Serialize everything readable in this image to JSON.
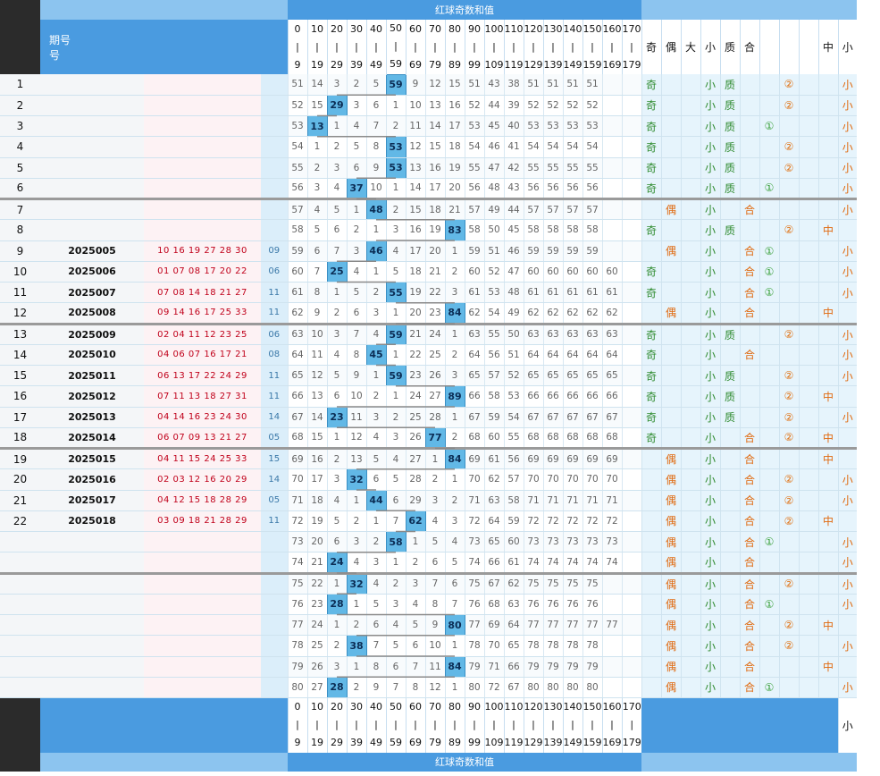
{
  "header": {
    "top_title": "红球奇数和值",
    "issue_label_line1": "期号",
    "issue_label_line2": "号",
    "ranges_top": [
      "0",
      "10",
      "20",
      "30",
      "40",
      "50",
      "60",
      "70",
      "80",
      "90",
      "100",
      "110",
      "120",
      "130",
      "140",
      "150",
      "160",
      "170"
    ],
    "ranges_mid": "|",
    "ranges_bottom": [
      "9",
      "19",
      "29",
      "39",
      "49",
      "59",
      "69",
      "79",
      "89",
      "99",
      "109",
      "119",
      "129",
      "139",
      "149",
      "159",
      "169",
      "179"
    ],
    "attr_labels": [
      "奇",
      "偶",
      "大",
      "小",
      "质",
      "合",
      "",
      "",
      "",
      "中",
      "小"
    ]
  },
  "footer": {
    "bottom_title": "红球奇数和值",
    "ranges_top": [
      "0",
      "10",
      "20",
      "30",
      "40",
      "50",
      "60",
      "70",
      "80",
      "90",
      "100",
      "110",
      "120",
      "130",
      "140",
      "150",
      "160",
      "170"
    ],
    "ranges_mid": "|",
    "ranges_bottom": [
      "9",
      "19",
      "29",
      "39",
      "49",
      "59",
      "69",
      "79",
      "89",
      "99",
      "109",
      "119",
      "129",
      "139",
      "149",
      "159",
      "169",
      "179"
    ],
    "last_attr_label": "小"
  },
  "rows": [
    {
      "idx": "1",
      "issue": "",
      "red": "",
      "sum": "",
      "hit": 5,
      "val": "59",
      "miss": [
        "51",
        "14",
        "3",
        "2",
        "5",
        "",
        "9",
        "12",
        "15",
        "51",
        "43",
        "38",
        "51",
        "51",
        "51",
        "51",
        "",
        ""
      ],
      "attrs": [
        "奇",
        "",
        "",
        "小",
        "质",
        "",
        "",
        "②",
        "",
        "",
        "小"
      ]
    },
    {
      "idx": "2",
      "issue": "",
      "red": "",
      "sum": "",
      "hit": 2,
      "val": "29",
      "miss": [
        "52",
        "15",
        "",
        "3",
        "6",
        "1",
        "10",
        "13",
        "16",
        "52",
        "44",
        "39",
        "52",
        "52",
        "52",
        "52",
        "",
        ""
      ],
      "attrs": [
        "奇",
        "",
        "",
        "小",
        "质",
        "",
        "",
        "②",
        "",
        "",
        "小"
      ]
    },
    {
      "idx": "3",
      "issue": "",
      "red": "",
      "sum": "",
      "hit": 1,
      "val": "13",
      "miss": [
        "53",
        "",
        "1",
        "4",
        "7",
        "2",
        "11",
        "14",
        "17",
        "53",
        "45",
        "40",
        "53",
        "53",
        "53",
        "53",
        "",
        ""
      ],
      "attrs": [
        "奇",
        "",
        "",
        "小",
        "质",
        "",
        "①",
        "",
        "",
        "",
        "小"
      ]
    },
    {
      "idx": "4",
      "issue": "",
      "red": "",
      "sum": "",
      "hit": 5,
      "val": "53",
      "miss": [
        "54",
        "1",
        "2",
        "5",
        "8",
        "",
        "12",
        "15",
        "18",
        "54",
        "46",
        "41",
        "54",
        "54",
        "54",
        "54",
        "",
        ""
      ],
      "attrs": [
        "奇",
        "",
        "",
        "小",
        "质",
        "",
        "",
        "②",
        "",
        "",
        "小"
      ]
    },
    {
      "idx": "5",
      "issue": "",
      "red": "",
      "sum": "",
      "hit": 5,
      "val": "53",
      "miss": [
        "55",
        "2",
        "3",
        "6",
        "9",
        "",
        "13",
        "16",
        "19",
        "55",
        "47",
        "42",
        "55",
        "55",
        "55",
        "55",
        "",
        ""
      ],
      "attrs": [
        "奇",
        "",
        "",
        "小",
        "质",
        "",
        "",
        "②",
        "",
        "",
        "小"
      ]
    },
    {
      "idx": "6",
      "issue": "",
      "red": "",
      "sum": "",
      "hit": 3,
      "val": "37",
      "miss": [
        "56",
        "3",
        "4",
        "",
        "10",
        "1",
        "14",
        "17",
        "20",
        "56",
        "48",
        "43",
        "56",
        "56",
        "56",
        "56",
        "",
        ""
      ],
      "attrs": [
        "奇",
        "",
        "",
        "小",
        "质",
        "",
        "①",
        "",
        "",
        "",
        "小"
      ]
    },
    {
      "idx": "7",
      "issue": "",
      "red": "",
      "sum": "",
      "hit": 4,
      "val": "48",
      "miss": [
        "57",
        "4",
        "5",
        "1",
        "",
        "2",
        "15",
        "18",
        "21",
        "57",
        "49",
        "44",
        "57",
        "57",
        "57",
        "57",
        "",
        ""
      ],
      "attrs": [
        "",
        "偶",
        "",
        "小",
        "",
        "合",
        "",
        "",
        "",
        "",
        "小"
      ]
    },
    {
      "idx": "8",
      "issue": "",
      "red": "",
      "sum": "",
      "hit": 8,
      "val": "83",
      "miss": [
        "58",
        "5",
        "6",
        "2",
        "1",
        "3",
        "16",
        "19",
        "",
        "58",
        "50",
        "45",
        "58",
        "58",
        "58",
        "58",
        "",
        ""
      ],
      "attrs": [
        "奇",
        "",
        "",
        "小",
        "质",
        "",
        "",
        "②",
        "",
        "中",
        ""
      ]
    },
    {
      "idx": "9",
      "issue": "2025005",
      "red": "10 16 19 27 28 30",
      "sum": "09",
      "hit": 4,
      "val": "46",
      "miss": [
        "59",
        "6",
        "7",
        "3",
        "",
        "4",
        "17",
        "20",
        "1",
        "59",
        "51",
        "46",
        "59",
        "59",
        "59",
        "59",
        "",
        ""
      ],
      "attrs": [
        "",
        "偶",
        "",
        "小",
        "",
        "合",
        "①",
        "",
        "",
        "",
        "小"
      ]
    },
    {
      "idx": "10",
      "issue": "2025006",
      "red": "01 07 08 17 20 22",
      "sum": "06",
      "hit": 2,
      "val": "25",
      "miss": [
        "60",
        "7",
        "",
        "4",
        "1",
        "5",
        "18",
        "21",
        "2",
        "60",
        "52",
        "47",
        "60",
        "60",
        "60",
        "60",
        "60",
        ""
      ],
      "attrs": [
        "奇",
        "",
        "",
        "小",
        "",
        "合",
        "①",
        "",
        "",
        "",
        "小"
      ]
    },
    {
      "idx": "11",
      "issue": "2025007",
      "red": "07 08 14 18 21 27",
      "sum": "11",
      "hit": 5,
      "val": "55",
      "miss": [
        "61",
        "8",
        "1",
        "5",
        "2",
        "",
        "19",
        "22",
        "3",
        "61",
        "53",
        "48",
        "61",
        "61",
        "61",
        "61",
        "61",
        ""
      ],
      "attrs": [
        "奇",
        "",
        "",
        "小",
        "",
        "合",
        "①",
        "",
        "",
        "",
        "小"
      ]
    },
    {
      "idx": "12",
      "issue": "2025008",
      "red": "09 14 16 17 25 33",
      "sum": "11",
      "hit": 8,
      "val": "84",
      "miss": [
        "62",
        "9",
        "2",
        "6",
        "3",
        "1",
        "20",
        "23",
        "",
        "62",
        "54",
        "49",
        "62",
        "62",
        "62",
        "62",
        "62",
        ""
      ],
      "attrs": [
        "",
        "偶",
        "",
        "小",
        "",
        "合",
        "",
        "",
        "",
        "中",
        ""
      ]
    },
    {
      "idx": "13",
      "issue": "2025009",
      "red": "02 04 11 12 23 25",
      "sum": "06",
      "hit": 5,
      "val": "59",
      "miss": [
        "63",
        "10",
        "3",
        "7",
        "4",
        "",
        "21",
        "24",
        "1",
        "63",
        "55",
        "50",
        "63",
        "63",
        "63",
        "63",
        "63",
        ""
      ],
      "attrs": [
        "奇",
        "",
        "",
        "小",
        "质",
        "",
        "",
        "②",
        "",
        "",
        "小"
      ]
    },
    {
      "idx": "14",
      "issue": "2025010",
      "red": "04 06 07 16 17 21",
      "sum": "08",
      "hit": 4,
      "val": "45",
      "miss": [
        "64",
        "11",
        "4",
        "8",
        "",
        "1",
        "22",
        "25",
        "2",
        "64",
        "56",
        "51",
        "64",
        "64",
        "64",
        "64",
        "64",
        ""
      ],
      "attrs": [
        "奇",
        "",
        "",
        "小",
        "",
        "合",
        "",
        "",
        "",
        "",
        "小"
      ]
    },
    {
      "idx": "15",
      "issue": "2025011",
      "red": "06 13 17 22 24 29",
      "sum": "11",
      "hit": 5,
      "val": "59",
      "miss": [
        "65",
        "12",
        "5",
        "9",
        "1",
        "",
        "23",
        "26",
        "3",
        "65",
        "57",
        "52",
        "65",
        "65",
        "65",
        "65",
        "65",
        ""
      ],
      "attrs": [
        "奇",
        "",
        "",
        "小",
        "质",
        "",
        "",
        "②",
        "",
        "",
        "小"
      ]
    },
    {
      "idx": "16",
      "issue": "2025012",
      "red": "07 11 13 18 27 31",
      "sum": "11",
      "hit": 8,
      "val": "89",
      "miss": [
        "66",
        "13",
        "6",
        "10",
        "2",
        "1",
        "24",
        "27",
        "",
        "66",
        "58",
        "53",
        "66",
        "66",
        "66",
        "66",
        "66",
        ""
      ],
      "attrs": [
        "奇",
        "",
        "",
        "小",
        "质",
        "",
        "",
        "②",
        "",
        "中",
        ""
      ]
    },
    {
      "idx": "17",
      "issue": "2025013",
      "red": "04 14 16 23 24 30",
      "sum": "14",
      "hit": 2,
      "val": "23",
      "miss": [
        "67",
        "14",
        "",
        "11",
        "3",
        "2",
        "25",
        "28",
        "1",
        "67",
        "59",
        "54",
        "67",
        "67",
        "67",
        "67",
        "67",
        ""
      ],
      "attrs": [
        "奇",
        "",
        "",
        "小",
        "质",
        "",
        "",
        "②",
        "",
        "",
        "小"
      ]
    },
    {
      "idx": "18",
      "issue": "2025014",
      "red": "06 07 09 13 21 27",
      "sum": "05",
      "hit": 7,
      "val": "77",
      "miss": [
        "68",
        "15",
        "1",
        "12",
        "4",
        "3",
        "26",
        "",
        "2",
        "68",
        "60",
        "55",
        "68",
        "68",
        "68",
        "68",
        "68",
        ""
      ],
      "attrs": [
        "奇",
        "",
        "",
        "小",
        "",
        "合",
        "",
        "②",
        "",
        "中",
        ""
      ]
    },
    {
      "idx": "19",
      "issue": "2025015",
      "red": "04 11 15 24 25 33",
      "sum": "15",
      "hit": 8,
      "val": "84",
      "miss": [
        "69",
        "16",
        "2",
        "13",
        "5",
        "4",
        "27",
        "1",
        "",
        "69",
        "61",
        "56",
        "69",
        "69",
        "69",
        "69",
        "69",
        ""
      ],
      "attrs": [
        "",
        "偶",
        "",
        "小",
        "",
        "合",
        "",
        "",
        "",
        "中",
        ""
      ]
    },
    {
      "idx": "20",
      "issue": "2025016",
      "red": "02 03 12 16 20 29",
      "sum": "14",
      "hit": 3,
      "val": "32",
      "miss": [
        "70",
        "17",
        "3",
        "",
        "6",
        "5",
        "28",
        "2",
        "1",
        "70",
        "62",
        "57",
        "70",
        "70",
        "70",
        "70",
        "70",
        ""
      ],
      "attrs": [
        "",
        "偶",
        "",
        "小",
        "",
        "合",
        "",
        "②",
        "",
        "",
        "小"
      ]
    },
    {
      "idx": "21",
      "issue": "2025017",
      "red": "04 12 15 18 28 29",
      "sum": "05",
      "hit": 4,
      "val": "44",
      "miss": [
        "71",
        "18",
        "4",
        "1",
        "",
        "6",
        "29",
        "3",
        "2",
        "71",
        "63",
        "58",
        "71",
        "71",
        "71",
        "71",
        "71",
        ""
      ],
      "attrs": [
        "",
        "偶",
        "",
        "小",
        "",
        "合",
        "",
        "②",
        "",
        "",
        "小"
      ]
    },
    {
      "idx": "22",
      "issue": "2025018",
      "red": "03 09 18 21 28 29",
      "sum": "11",
      "hit": 6,
      "val": "62",
      "miss": [
        "72",
        "19",
        "5",
        "2",
        "1",
        "7",
        "",
        "4",
        "3",
        "72",
        "64",
        "59",
        "72",
        "72",
        "72",
        "72",
        "72",
        ""
      ],
      "attrs": [
        "",
        "偶",
        "",
        "小",
        "",
        "合",
        "",
        "②",
        "",
        "中",
        ""
      ]
    },
    {
      "idx": "",
      "issue": "",
      "red": "",
      "sum": "",
      "hit": 5,
      "val": "58",
      "miss": [
        "73",
        "20",
        "6",
        "3",
        "2",
        "",
        "1",
        "5",
        "4",
        "73",
        "65",
        "60",
        "73",
        "73",
        "73",
        "73",
        "73",
        ""
      ],
      "attrs": [
        "",
        "偶",
        "",
        "小",
        "",
        "合",
        "①",
        "",
        "",
        "",
        "小"
      ]
    },
    {
      "idx": "",
      "issue": "",
      "red": "",
      "sum": "",
      "hit": 2,
      "val": "24",
      "miss": [
        "74",
        "21",
        "",
        "4",
        "3",
        "1",
        "2",
        "6",
        "5",
        "74",
        "66",
        "61",
        "74",
        "74",
        "74",
        "74",
        "74",
        ""
      ],
      "attrs": [
        "",
        "偶",
        "",
        "小",
        "",
        "合",
        "",
        "",
        "",
        "",
        "小"
      ]
    },
    {
      "idx": "",
      "issue": "",
      "red": "",
      "sum": "",
      "hit": 3,
      "val": "32",
      "miss": [
        "75",
        "22",
        "1",
        "",
        "4",
        "2",
        "3",
        "7",
        "6",
        "75",
        "67",
        "62",
        "75",
        "75",
        "75",
        "75",
        "",
        ""
      ],
      "attrs": [
        "",
        "偶",
        "",
        "小",
        "",
        "合",
        "",
        "②",
        "",
        "",
        "小"
      ]
    },
    {
      "idx": "",
      "issue": "",
      "red": "",
      "sum": "",
      "hit": 2,
      "val": "28",
      "miss": [
        "76",
        "23",
        "",
        "1",
        "5",
        "3",
        "4",
        "8",
        "7",
        "76",
        "68",
        "63",
        "76",
        "76",
        "76",
        "76",
        "",
        ""
      ],
      "attrs": [
        "",
        "偶",
        "",
        "小",
        "",
        "合",
        "①",
        "",
        "",
        "",
        "小"
      ]
    },
    {
      "idx": "",
      "issue": "",
      "red": "",
      "sum": "",
      "hit": 8,
      "val": "80",
      "miss": [
        "77",
        "24",
        "1",
        "2",
        "6",
        "4",
        "5",
        "9",
        "",
        "77",
        "69",
        "64",
        "77",
        "77",
        "77",
        "77",
        "77",
        ""
      ],
      "attrs": [
        "",
        "偶",
        "",
        "小",
        "",
        "合",
        "",
        "②",
        "",
        "中",
        ""
      ]
    },
    {
      "idx": "",
      "issue": "",
      "red": "",
      "sum": "",
      "hit": 3,
      "val": "38",
      "miss": [
        "78",
        "25",
        "2",
        "",
        "7",
        "5",
        "6",
        "10",
        "1",
        "78",
        "70",
        "65",
        "78",
        "78",
        "78",
        "78",
        "",
        ""
      ],
      "attrs": [
        "",
        "偶",
        "",
        "小",
        "",
        "合",
        "",
        "②",
        "",
        "",
        "小"
      ]
    },
    {
      "idx": "",
      "issue": "",
      "red": "",
      "sum": "",
      "hit": 8,
      "val": "84",
      "miss": [
        "79",
        "26",
        "3",
        "1",
        "8",
        "6",
        "7",
        "11",
        "",
        "79",
        "71",
        "66",
        "79",
        "79",
        "79",
        "79",
        "",
        ""
      ],
      "attrs": [
        "",
        "偶",
        "",
        "小",
        "",
        "合",
        "",
        "",
        "",
        "中",
        ""
      ]
    },
    {
      "idx": "",
      "issue": "",
      "red": "",
      "sum": "",
      "hit": 2,
      "val": "28",
      "miss": [
        "80",
        "27",
        "",
        "2",
        "9",
        "7",
        "8",
        "12",
        "1",
        "80",
        "72",
        "67",
        "80",
        "80",
        "80",
        "80",
        "",
        ""
      ],
      "attrs": [
        "",
        "偶",
        "",
        "小",
        "",
        "合",
        "①",
        "",
        "",
        "",
        "小"
      ]
    }
  ],
  "colors": {
    "hit_bg": "#62b8e6",
    "header_blue": "#4a9be0",
    "trend_line": "#8a8a8a",
    "odd_green": "#2d8a2d",
    "even_orange": "#e06a10"
  }
}
